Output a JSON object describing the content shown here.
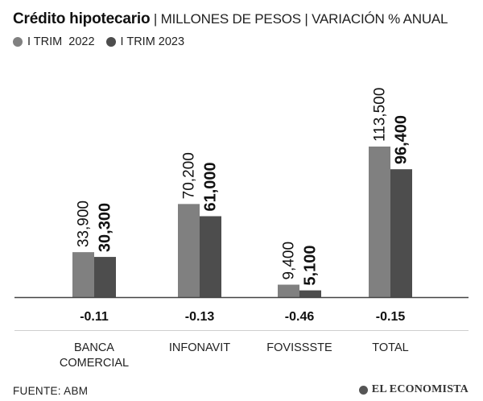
{
  "title": {
    "main": "Crédito hipotecario",
    "separator": " | ",
    "subtitle1": "MILLONES DE PESOS",
    "subtitle2": "VARIACIÓN % ANUAL"
  },
  "source": "FUENTE: ABM",
  "brand": "EL ECONOMISTA",
  "colors": {
    "series_2022": "#808080",
    "series_2023": "#4d4d4d",
    "baseline": "#444444",
    "divider": "#cfcfcf"
  },
  "chart_data": {
    "type": "bar",
    "categories": [
      "BANCA COMERCIAL",
      "INFONAVIT",
      "FOVISSSTE",
      "TOTAL"
    ],
    "category_lines": [
      [
        "BANCA",
        "COMERCIAL"
      ],
      [
        "INFONAVIT"
      ],
      [
        "FOVISSSTE"
      ],
      [
        "TOTAL"
      ]
    ],
    "series": [
      {
        "name": "I TRIM  2022",
        "values": [
          33900,
          70200,
          9400,
          113500
        ],
        "labels": [
          "33,900",
          "70,200",
          "9,400",
          "113,500"
        ]
      },
      {
        "name": "I TRIM 2023",
        "values": [
          30300,
          61000,
          5100,
          96400
        ],
        "labels": [
          "30,300",
          "61,000",
          "5,100",
          "96,400"
        ]
      }
    ],
    "variation": [
      "-0.11",
      "-0.13",
      "-0.46",
      "-0.15"
    ],
    "ylim": [
      0,
      113500
    ],
    "legend": "top-left",
    "grid": false
  }
}
